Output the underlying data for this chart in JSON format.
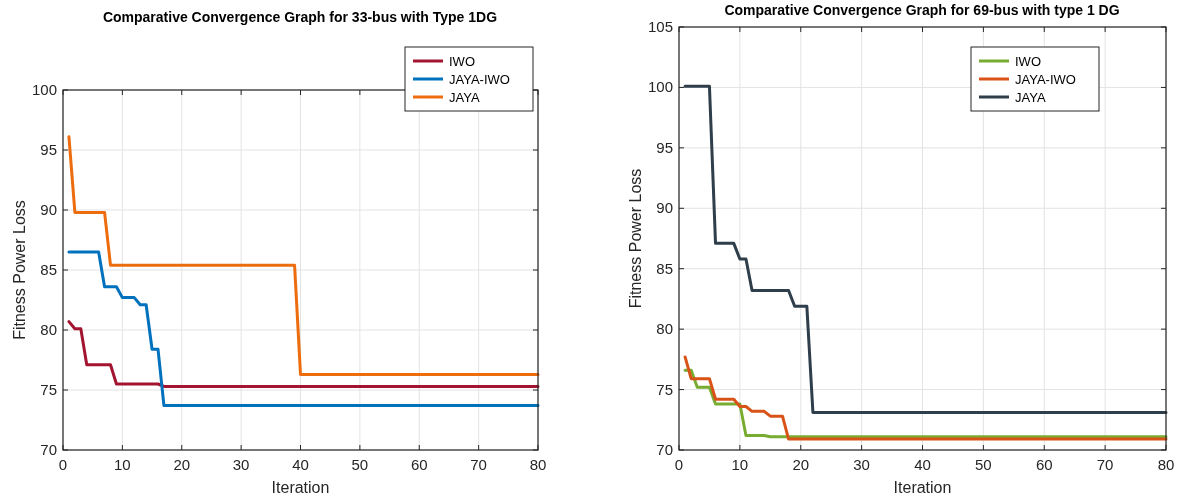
{
  "chart_data": [
    {
      "type": "line",
      "title": "Comparative Convergence Graph for 33-bus with Type 1DG",
      "xlabel": "Iteration",
      "ylabel": "Fitness Power Loss",
      "xlim": [
        0,
        80
      ],
      "ylim": [
        70,
        100
      ],
      "xticks": [
        0,
        10,
        20,
        30,
        40,
        50,
        60,
        70,
        80
      ],
      "yticks": [
        70,
        75,
        80,
        85,
        90,
        95,
        100
      ],
      "grid": true,
      "legend": "top right",
      "line_style": "solid",
      "marker": "none",
      "series": [
        {
          "name": "IWO",
          "color": "#a2142f",
          "x": [
            1,
            2,
            3,
            4,
            8,
            9,
            16,
            17,
            80
          ],
          "values": [
            80.7,
            80.1,
            80.1,
            77.1,
            77.1,
            75.5,
            75.5,
            75.3,
            75.3
          ]
        },
        {
          "name": "JAYA-IWO",
          "color": "#0072bd",
          "x": [
            1,
            6,
            7,
            9,
            10,
            12,
            13,
            14,
            15,
            16,
            17,
            80
          ],
          "values": [
            86.5,
            86.5,
            83.6,
            83.6,
            82.7,
            82.7,
            82.1,
            82.1,
            78.4,
            78.4,
            73.7,
            73.7
          ]
        },
        {
          "name": "JAYA",
          "color": "#ec6c0e",
          "x": [
            1,
            2,
            7,
            8,
            39,
            40,
            80
          ],
          "values": [
            96.1,
            89.8,
            89.8,
            85.4,
            85.4,
            76.3,
            76.3
          ]
        }
      ]
    },
    {
      "type": "line",
      "title": "Comparative Convergence Graph for 69-bus with type 1 DG",
      "xlabel": "Iteration",
      "ylabel": "Fitness Power Loss",
      "xlim": [
        0,
        80
      ],
      "ylim": [
        70,
        105
      ],
      "xticks": [
        0,
        10,
        20,
        30,
        40,
        50,
        60,
        70,
        80
      ],
      "yticks": [
        70,
        75,
        80,
        85,
        90,
        95,
        100,
        105
      ],
      "grid": true,
      "legend": "top right",
      "line_style": "solid",
      "marker": "none",
      "series": [
        {
          "name": "IWO",
          "color": "#77ac30",
          "x": [
            1,
            2,
            3,
            5,
            6,
            10,
            11,
            14,
            15,
            80
          ],
          "values": [
            76.6,
            76.6,
            75.2,
            75.2,
            73.8,
            73.8,
            71.2,
            71.2,
            71.1,
            71.1
          ]
        },
        {
          "name": "JAYA-IWO",
          "color": "#d95319",
          "x": [
            1,
            2,
            5,
            6,
            9,
            10,
            11,
            12,
            14,
            15,
            17,
            18,
            80
          ],
          "values": [
            77.7,
            75.9,
            75.9,
            74.2,
            74.2,
            73.6,
            73.6,
            73.2,
            73.2,
            72.8,
            72.8,
            70.9,
            70.9
          ]
        },
        {
          "name": "JAYA",
          "color": "#2f3e4b",
          "x": [
            1,
            5,
            6,
            9,
            10,
            11,
            12,
            18,
            19,
            21,
            22,
            80
          ],
          "values": [
            100.1,
            100.1,
            87.1,
            87.1,
            85.8,
            85.8,
            83.2,
            83.2,
            81.9,
            81.9,
            73.1,
            73.1
          ]
        }
      ]
    }
  ]
}
